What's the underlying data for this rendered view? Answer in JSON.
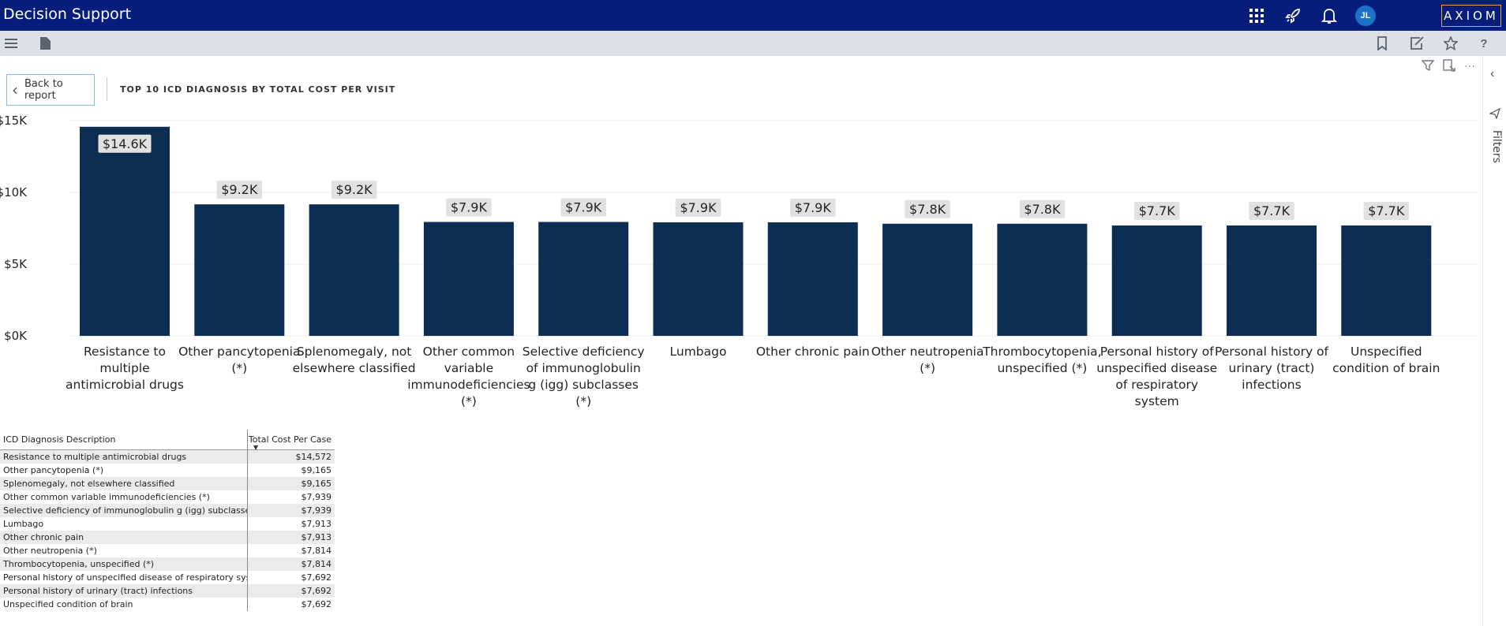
{
  "app": {
    "title": "Decision Support",
    "brand": "AXIOM",
    "avatar_initials": "JL"
  },
  "report": {
    "back_label": "Back to report",
    "chart_title": "TOP 10 ICD DIAGNOSIS BY TOTAL COST PER VISIT",
    "filters_label": "Filters"
  },
  "colors": {
    "topbar": "#061d7c",
    "bar": "#0b2e52",
    "label_bg": "#e1e1e1"
  },
  "chart_data": {
    "type": "bar",
    "title": "TOP 10 ICD DIAGNOSIS BY TOTAL COST PER VISIT",
    "ylim": [
      0,
      15000
    ],
    "yticks": [
      "$0K",
      "$5K",
      "$10K",
      "$15K"
    ],
    "ytick_values": [
      0,
      5000,
      10000,
      15000
    ],
    "grid": true,
    "categories": [
      [
        "Resistance to",
        "multiple",
        "antimicrobial drugs"
      ],
      [
        "Other pancytopenia",
        "(*)"
      ],
      [
        "Splenomegaly, not",
        "elsewhere classified"
      ],
      [
        "Other common",
        "variable",
        "immunodeficiencies",
        "(*)"
      ],
      [
        "Selective deficiency",
        "of immunoglobulin",
        "g (igg) subclasses",
        "(*)"
      ],
      [
        "Lumbago"
      ],
      [
        "Other chronic pain"
      ],
      [
        "Other neutropenia",
        "(*)"
      ],
      [
        "Thrombocytopenia,",
        "unspecified (*)"
      ],
      [
        "Personal history of",
        "unspecified disease",
        "of respiratory",
        "system"
      ],
      [
        "Personal history of",
        "urinary (tract)",
        "infections"
      ],
      [
        "Unspecified",
        "condition of brain"
      ]
    ],
    "values": [
      14572,
      9165,
      9165,
      7939,
      7939,
      7913,
      7913,
      7814,
      7814,
      7692,
      7692,
      7692
    ],
    "data_labels": [
      "$14.6K",
      "$9.2K",
      "$9.2K",
      "$7.9K",
      "$7.9K",
      "$7.9K",
      "$7.9K",
      "$7.8K",
      "$7.8K",
      "$7.7K",
      "$7.7K",
      "$7.7K"
    ]
  },
  "table": {
    "headers": [
      "ICD Diagnosis Description",
      "Total Cost Per Case"
    ],
    "rows": [
      [
        "Resistance to multiple antimicrobial drugs",
        "$14,572"
      ],
      [
        "Other pancytopenia (*)",
        "$9,165"
      ],
      [
        "Splenomegaly, not elsewhere classified",
        "$9,165"
      ],
      [
        "Other common variable immunodeficiencies (*)",
        "$7,939"
      ],
      [
        "Selective deficiency of immunoglobulin g (igg) subclasses (*)",
        "$7,939"
      ],
      [
        "Lumbago",
        "$7,913"
      ],
      [
        "Other chronic pain",
        "$7,913"
      ],
      [
        "Other neutropenia (*)",
        "$7,814"
      ],
      [
        "Thrombocytopenia, unspecified (*)",
        "$7,814"
      ],
      [
        "Personal history of unspecified disease of respiratory system",
        "$7,692"
      ],
      [
        "Personal history of urinary (tract) infections",
        "$7,692"
      ],
      [
        "Unspecified condition of brain",
        "$7,692"
      ]
    ]
  },
  "icons": {
    "topbar": [
      "apps-grid-icon",
      "rocket-icon",
      "bell-icon"
    ],
    "toolbar": [
      "menu-icon",
      "document-icon",
      "bookmark-icon",
      "edit-icon",
      "star-icon",
      "help-icon"
    ],
    "visual": [
      "filter-icon",
      "focus-mode-icon",
      "more-options-icon"
    ],
    "rightpane": [
      "collapse-chevron-icon",
      "filter-pane-icon"
    ]
  }
}
